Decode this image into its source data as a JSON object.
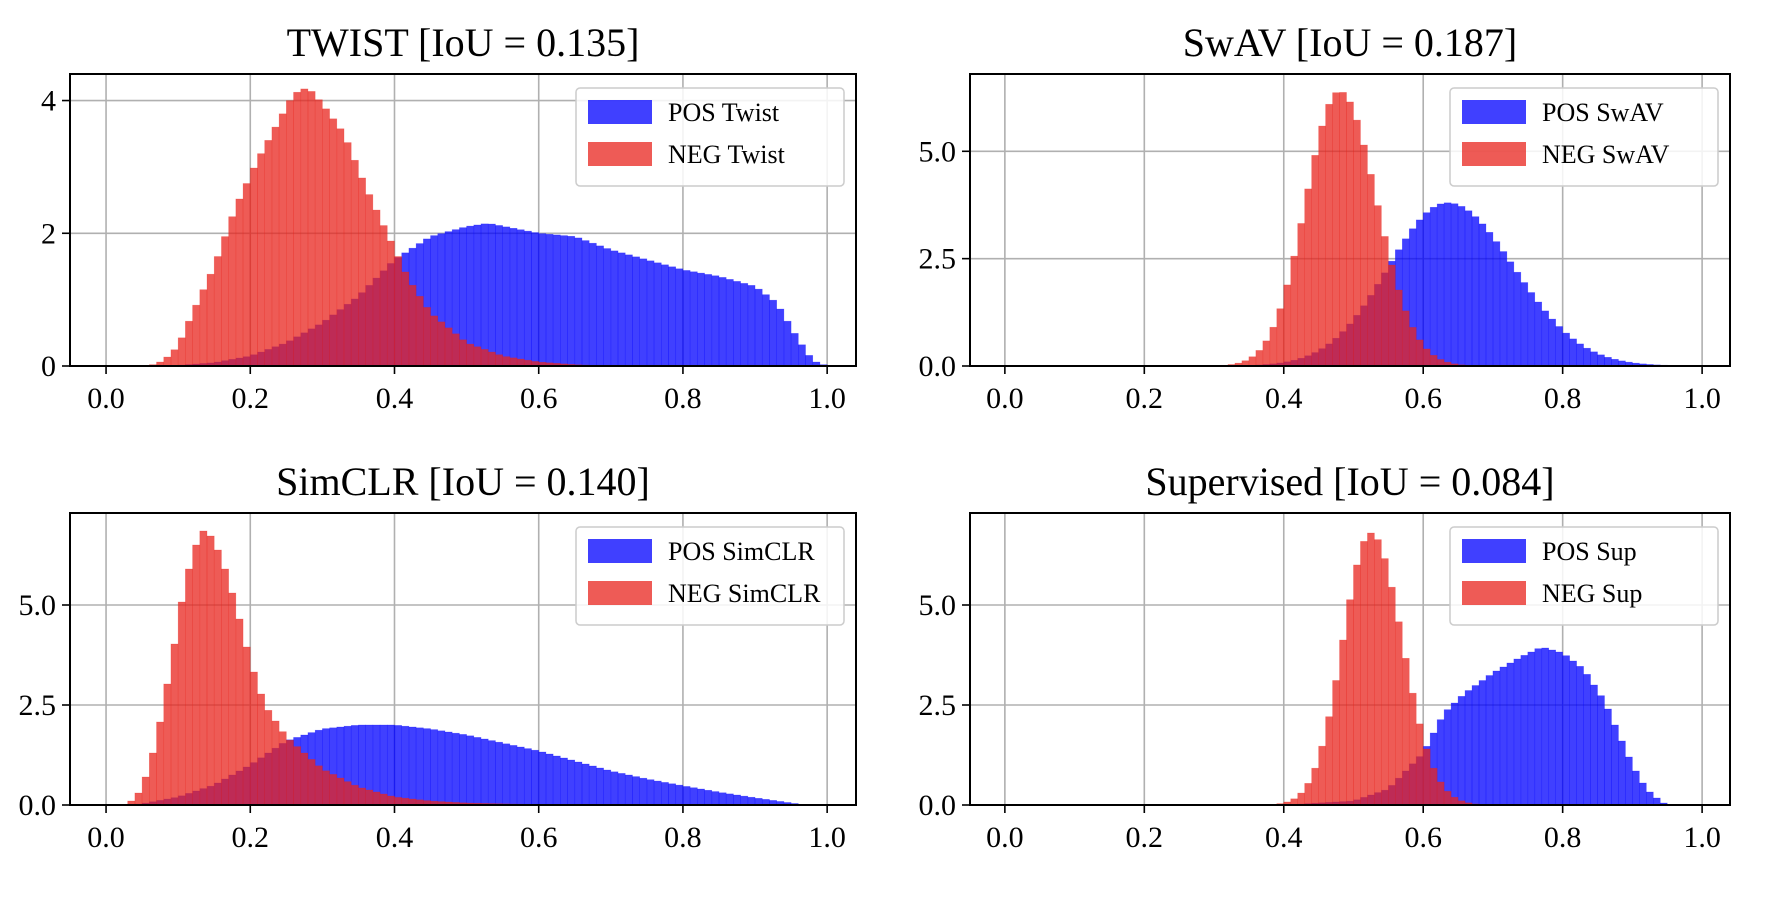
{
  "colors": {
    "pos": "#0000ff",
    "neg": "#e8241d",
    "grid": "#b0b0b0",
    "axis": "#000000"
  },
  "chart_data": [
    {
      "type": "histogram",
      "title": "TWIST  [IoU = 0.135]",
      "xlim": [
        -0.05,
        1.04
      ],
      "ylim": [
        0,
        4.4
      ],
      "xticks": [
        0.0,
        0.2,
        0.4,
        0.6,
        0.8,
        1.0
      ],
      "xtick_labels": [
        "0.0",
        "0.2",
        "0.4",
        "0.6",
        "0.8",
        "1.0"
      ],
      "yticks": [
        0,
        2,
        4
      ],
      "ytick_labels": [
        "0",
        "2",
        "4"
      ],
      "grid": true,
      "legend_position": "top-right",
      "bins": {
        "start": 0.0,
        "end": 1.0,
        "count": 100
      },
      "series": [
        {
          "name": "POS  Twist",
          "color": "#0000ff",
          "alpha": 0.75,
          "shape": "curve",
          "curve": [
            [
              0.07,
              0
            ],
            [
              0.1,
              0.01
            ],
            [
              0.15,
              0.05
            ],
            [
              0.2,
              0.15
            ],
            [
              0.25,
              0.35
            ],
            [
              0.3,
              0.65
            ],
            [
              0.35,
              1.05
            ],
            [
              0.4,
              1.6
            ],
            [
              0.45,
              1.95
            ],
            [
              0.5,
              2.1
            ],
            [
              0.53,
              2.15
            ],
            [
              0.6,
              2.0
            ],
            [
              0.65,
              1.95
            ],
            [
              0.7,
              1.75
            ],
            [
              0.75,
              1.6
            ],
            [
              0.8,
              1.45
            ],
            [
              0.85,
              1.35
            ],
            [
              0.9,
              1.2
            ],
            [
              0.93,
              0.95
            ],
            [
              0.96,
              0.4
            ],
            [
              0.98,
              0.08
            ],
            [
              1.0,
              0
            ]
          ]
        },
        {
          "name": "NEG Twist",
          "color": "#e8241d",
          "alpha": 0.75,
          "shape": "curve",
          "curve": [
            [
              0.06,
              0
            ],
            [
              0.08,
              0.08
            ],
            [
              0.1,
              0.3
            ],
            [
              0.12,
              0.8
            ],
            [
              0.15,
              1.5
            ],
            [
              0.18,
              2.4
            ],
            [
              0.21,
              3.1
            ],
            [
              0.24,
              3.7
            ],
            [
              0.26,
              4.1
            ],
            [
              0.28,
              4.2
            ],
            [
              0.3,
              3.95
            ],
            [
              0.33,
              3.5
            ],
            [
              0.36,
              2.7
            ],
            [
              0.39,
              2.0
            ],
            [
              0.42,
              1.3
            ],
            [
              0.45,
              0.8
            ],
            [
              0.5,
              0.35
            ],
            [
              0.55,
              0.15
            ],
            [
              0.6,
              0.06
            ],
            [
              0.65,
              0.02
            ],
            [
              0.7,
              0
            ]
          ]
        }
      ]
    },
    {
      "type": "histogram",
      "title": "SwAV [IoU = 0.187]",
      "xlim": [
        -0.05,
        1.04
      ],
      "ylim": [
        0,
        6.8
      ],
      "xticks": [
        0.0,
        0.2,
        0.4,
        0.6,
        0.8,
        1.0
      ],
      "xtick_labels": [
        "0.0",
        "0.2",
        "0.4",
        "0.6",
        "0.8",
        "1.0"
      ],
      "yticks": [
        0,
        2.5,
        5
      ],
      "ytick_labels": [
        "0.0",
        "2.5",
        "5.0"
      ],
      "grid": true,
      "legend_position": "top-right",
      "bins": {
        "start": 0.0,
        "end": 1.0,
        "count": 100
      },
      "series": [
        {
          "name": "POS SwAV",
          "color": "#0000ff",
          "alpha": 0.75,
          "shape": "gauss",
          "peak": 3.8,
          "mean": 0.635,
          "sdl": 0.085,
          "sdr": 0.095
        },
        {
          "name": "NEG SwAV",
          "color": "#e8241d",
          "alpha": 0.75,
          "shape": "gauss",
          "peak": 6.4,
          "mean": 0.48,
          "sdl": 0.048,
          "sdr": 0.053
        }
      ]
    },
    {
      "type": "histogram",
      "title": "SimCLR [IoU = 0.140]",
      "xlim": [
        -0.05,
        1.04
      ],
      "ylim": [
        0,
        7.3
      ],
      "xticks": [
        0.0,
        0.2,
        0.4,
        0.6,
        0.8,
        1.0
      ],
      "xtick_labels": [
        "0.0",
        "0.2",
        "0.4",
        "0.6",
        "0.8",
        "1.0"
      ],
      "yticks": [
        0,
        2.5,
        5
      ],
      "ytick_labels": [
        "0.0",
        "2.5",
        "5.0"
      ],
      "grid": true,
      "legend_position": "top-right",
      "bins": {
        "start": 0.0,
        "end": 1.0,
        "count": 100
      },
      "series": [
        {
          "name": "POS SimCLR",
          "color": "#0000ff",
          "alpha": 0.75,
          "shape": "curve",
          "curve": [
            [
              0.03,
              0
            ],
            [
              0.05,
              0.03
            ],
            [
              0.1,
              0.2
            ],
            [
              0.15,
              0.5
            ],
            [
              0.2,
              1.0
            ],
            [
              0.25,
              1.6
            ],
            [
              0.3,
              1.9
            ],
            [
              0.35,
              2.0
            ],
            [
              0.4,
              2.0
            ],
            [
              0.45,
              1.9
            ],
            [
              0.5,
              1.75
            ],
            [
              0.55,
              1.55
            ],
            [
              0.6,
              1.35
            ],
            [
              0.65,
              1.1
            ],
            [
              0.7,
              0.85
            ],
            [
              0.75,
              0.65
            ],
            [
              0.8,
              0.48
            ],
            [
              0.85,
              0.32
            ],
            [
              0.9,
              0.18
            ],
            [
              0.95,
              0.05
            ],
            [
              0.97,
              0
            ]
          ]
        },
        {
          "name": "NEG SimCLR",
          "color": "#e8241d",
          "alpha": 0.75,
          "shape": "curve",
          "curve": [
            [
              0.03,
              0
            ],
            [
              0.05,
              0.4
            ],
            [
              0.07,
              1.6
            ],
            [
              0.09,
              3.5
            ],
            [
              0.11,
              5.6
            ],
            [
              0.13,
              6.8
            ],
            [
              0.14,
              6.9
            ],
            [
              0.16,
              6.2
            ],
            [
              0.18,
              5.0
            ],
            [
              0.2,
              3.6
            ],
            [
              0.22,
              2.5
            ],
            [
              0.25,
              1.7
            ],
            [
              0.3,
              0.9
            ],
            [
              0.35,
              0.45
            ],
            [
              0.4,
              0.2
            ],
            [
              0.45,
              0.1
            ],
            [
              0.5,
              0.05
            ],
            [
              0.6,
              0.01
            ],
            [
              0.7,
              0
            ]
          ]
        }
      ]
    },
    {
      "type": "histogram",
      "title": "Supervised [IoU = 0.084]",
      "xlim": [
        -0.05,
        1.04
      ],
      "ylim": [
        0,
        7.3
      ],
      "xticks": [
        0.0,
        0.2,
        0.4,
        0.6,
        0.8,
        1.0
      ],
      "xtick_labels": [
        "0.0",
        "0.2",
        "0.4",
        "0.6",
        "0.8",
        "1.0"
      ],
      "yticks": [
        0,
        2.5,
        5
      ],
      "ytick_labels": [
        "0.0",
        "2.5",
        "5.0"
      ],
      "grid": true,
      "legend_position": "top-right",
      "bins": {
        "start": 0.0,
        "end": 1.0,
        "count": 100
      },
      "series": [
        {
          "name": "POS Sup",
          "color": "#0000ff",
          "alpha": 0.75,
          "shape": "curve",
          "curve": [
            [
              0.4,
              0
            ],
            [
              0.5,
              0.1
            ],
            [
              0.55,
              0.4
            ],
            [
              0.6,
              1.3
            ],
            [
              0.63,
              2.3
            ],
            [
              0.66,
              2.8
            ],
            [
              0.7,
              3.3
            ],
            [
              0.74,
              3.7
            ],
            [
              0.77,
              3.95
            ],
            [
              0.8,
              3.8
            ],
            [
              0.83,
              3.4
            ],
            [
              0.86,
              2.6
            ],
            [
              0.88,
              1.8
            ],
            [
              0.9,
              1.0
            ],
            [
              0.92,
              0.4
            ],
            [
              0.94,
              0.1
            ],
            [
              0.95,
              0
            ]
          ]
        },
        {
          "name": "NEG Sup",
          "color": "#e8241d",
          "alpha": 0.75,
          "shape": "gauss",
          "peak": 6.8,
          "mean": 0.525,
          "sdl": 0.04,
          "sdr": 0.045
        }
      ]
    }
  ]
}
